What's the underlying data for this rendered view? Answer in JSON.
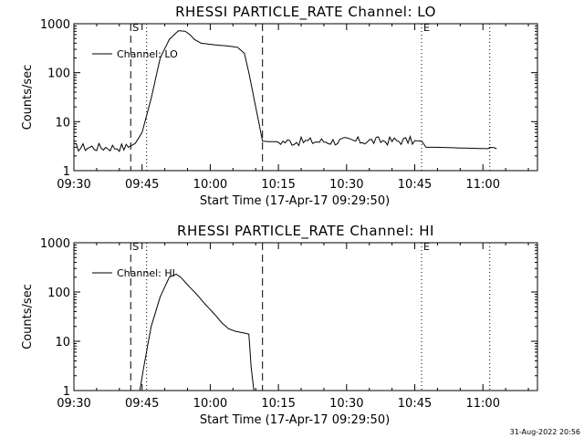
{
  "footer": {
    "timestamp": "31-Aug-2022 20:56"
  },
  "chart_data": [
    {
      "type": "line",
      "title": "RHESSI PARTICLE_RATE Channel: LO",
      "xlabel": "Start Time (17-Apr-17 09:29:50)",
      "ylabel": "Counts/sec",
      "yscale": "log",
      "xlim": [
        0,
        102
      ],
      "ylim": [
        1,
        1000
      ],
      "x_unit": "minutes after 09:30",
      "xtick_labels": [
        "09:30",
        "09:45",
        "10:00",
        "10:15",
        "10:30",
        "10:45",
        "11:00"
      ],
      "xtick_values": [
        0,
        15,
        30,
        45,
        60,
        75,
        90
      ],
      "ytick_labels": [
        "1",
        "10",
        "100",
        "1000"
      ],
      "ytick_values": [
        1,
        10,
        100,
        1000
      ],
      "legend": "Channel: LO",
      "legend_position": "top-left",
      "markers": [
        {
          "label": "S",
          "x": 12.5,
          "style": "dashed"
        },
        {
          "label": "",
          "x": 16.0,
          "style": "dotted"
        },
        {
          "label": "",
          "x": 41.5,
          "style": "dashed"
        },
        {
          "label": "E",
          "x": 76.5,
          "style": "dotted"
        },
        {
          "label": "",
          "x": 91.5,
          "style": "dotted"
        }
      ],
      "series": [
        {
          "name": "Channel: LO",
          "x": [
            0,
            12,
            13.5,
            15,
            17,
            19,
            21,
            23,
            24.5,
            25.5,
            26.5,
            28,
            31,
            34,
            36,
            37.5,
            38.5,
            40,
            41.5,
            43,
            45,
            60,
            75,
            76.5,
            77.5,
            80,
            85,
            91.5,
            93
          ],
          "y": [
            3.0,
            3.0,
            3.6,
            6.0,
            30,
            200,
            480,
            720,
            700,
            600,
            480,
            400,
            370,
            350,
            330,
            250,
            100,
            20,
            4.0,
            3.9,
            3.9,
            4.0,
            4.1,
            4.0,
            3.0,
            3.0,
            2.9,
            2.8,
            2.8
          ],
          "noisy_ranges": [
            [
              0,
              12
            ],
            [
              44,
              75
            ],
            [
              86,
              93
            ]
          ]
        }
      ]
    },
    {
      "type": "line",
      "title": "RHESSI PARTICLE_RATE Channel: HI",
      "xlabel": "Start Time (17-Apr-17 09:29:50)",
      "ylabel": "Counts/sec",
      "yscale": "log",
      "xlim": [
        0,
        102
      ],
      "ylim": [
        1,
        1000
      ],
      "x_unit": "minutes after 09:30",
      "xtick_labels": [
        "09:30",
        "09:45",
        "10:00",
        "10:15",
        "10:30",
        "10:45",
        "11:00"
      ],
      "xtick_values": [
        0,
        15,
        30,
        45,
        60,
        75,
        90
      ],
      "ytick_labels": [
        "1",
        "10",
        "100",
        "1000"
      ],
      "ytick_values": [
        1,
        10,
        100,
        1000
      ],
      "legend": "Channel: HI",
      "legend_position": "top-left",
      "markers": [
        {
          "label": "S",
          "x": 12.5,
          "style": "dashed"
        },
        {
          "label": "",
          "x": 16.0,
          "style": "dotted"
        },
        {
          "label": "",
          "x": 41.5,
          "style": "dashed"
        },
        {
          "label": "E",
          "x": 76.5,
          "style": "dotted"
        },
        {
          "label": "",
          "x": 91.5,
          "style": "dotted"
        }
      ],
      "series": [
        {
          "name": "Channel: HI",
          "x": [
            14.5,
            15.5,
            17,
            19,
            21,
            22.5,
            23.5,
            25,
            27,
            29,
            31,
            32.5,
            34,
            35.5,
            37,
            38.5,
            39,
            39.6
          ],
          "y": [
            1.0,
            3.5,
            20,
            80,
            200,
            230,
            200,
            140,
            90,
            55,
            35,
            24,
            18,
            16,
            15,
            14,
            3,
            1.0
          ],
          "noisy_ranges": []
        }
      ]
    }
  ]
}
